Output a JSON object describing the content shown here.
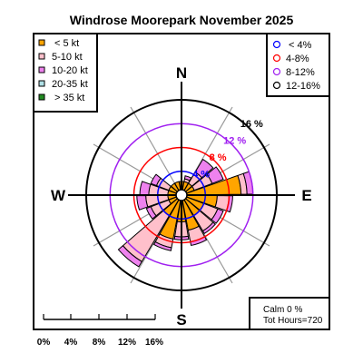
{
  "chart_data": {
    "type": "windrose",
    "title": "Windrose  Moorepark November 2025",
    "compass": {
      "north": "N",
      "east": "E",
      "south": "S",
      "west": "W"
    },
    "rings": [
      {
        "label": "4 %",
        "value": 4,
        "color": "#0000ff"
      },
      {
        "label": "8 %",
        "value": 8,
        "color": "#ff0000"
      },
      {
        "label": "12 %",
        "value": 12,
        "color": "#a020f0"
      },
      {
        "label": "16 %",
        "value": 16,
        "color": "#000000"
      }
    ],
    "speed_legend": [
      {
        "label": "< 5  kt",
        "color": "#ffa500"
      },
      {
        "label": "5-10 kt",
        "color": "#ffc0cb"
      },
      {
        "label": "10-20 kt",
        "color": "#ee82ee"
      },
      {
        "label": "20-35 kt",
        "color": "#b0e0e6"
      },
      {
        "label": "> 35 kt",
        "color": "#228b22"
      }
    ],
    "ring_legend": [
      {
        "label": "< 4%",
        "color": "#0000ff"
      },
      {
        "label": "4-8%",
        "color": "#ff0000"
      },
      {
        "label": "8-12%",
        "color": "#a020f0"
      },
      {
        "label": "12-16%",
        "color": "#000000"
      }
    ],
    "calm": "Calm 0 %",
    "total_hours": "Tot Hours=720",
    "scale_labels": [
      "0%",
      "4%",
      "8%",
      "12%",
      "16%"
    ],
    "rmax": 16,
    "sector_width_deg": 20,
    "sectors": [
      {
        "dir": 0,
        "cum": [
          2.3,
          2.3,
          2.3
        ]
      },
      {
        "dir": 20,
        "cum": [
          2.3,
          2.8,
          3.3
        ]
      },
      {
        "dir": 40,
        "cum": [
          2.3,
          4.5,
          7.0
        ]
      },
      {
        "dir": 60,
        "cum": [
          2.3,
          5.5,
          7.5
        ]
      },
      {
        "dir": 80,
        "cum": [
          10.0,
          11.0,
          12.0
        ]
      },
      {
        "dir": 100,
        "cum": [
          6.0,
          8.0,
          8.6
        ]
      },
      {
        "dir": 120,
        "cum": [
          4.0,
          6.5,
          7.5
        ]
      },
      {
        "dir": 140,
        "cum": [
          4.0,
          7.0,
          7.5
        ]
      },
      {
        "dir": 160,
        "cum": [
          6.0,
          8.0,
          8.6
        ]
      },
      {
        "dir": 180,
        "cum": [
          4.5,
          7.0,
          7.5
        ]
      },
      {
        "dir": 200,
        "cum": [
          7.5,
          9.0,
          9.5
        ]
      },
      {
        "dir": 220,
        "cum": [
          4.0,
          13.0,
          14.0
        ]
      },
      {
        "dir": 240,
        "cum": [
          2.3,
          5.5,
          6.3
        ]
      },
      {
        "dir": 260,
        "cum": [
          2.3,
          6.0,
          7.5
        ]
      },
      {
        "dir": 280,
        "cum": [
          2.3,
          5.5,
          7.0
        ]
      },
      {
        "dir": 300,
        "cum": [
          2.3,
          4.5,
          5.5
        ]
      },
      {
        "dir": 320,
        "cum": [
          2.3,
          2.3,
          2.3
        ]
      },
      {
        "dir": 340,
        "cum": [
          2.3,
          2.3,
          2.3
        ]
      }
    ]
  }
}
